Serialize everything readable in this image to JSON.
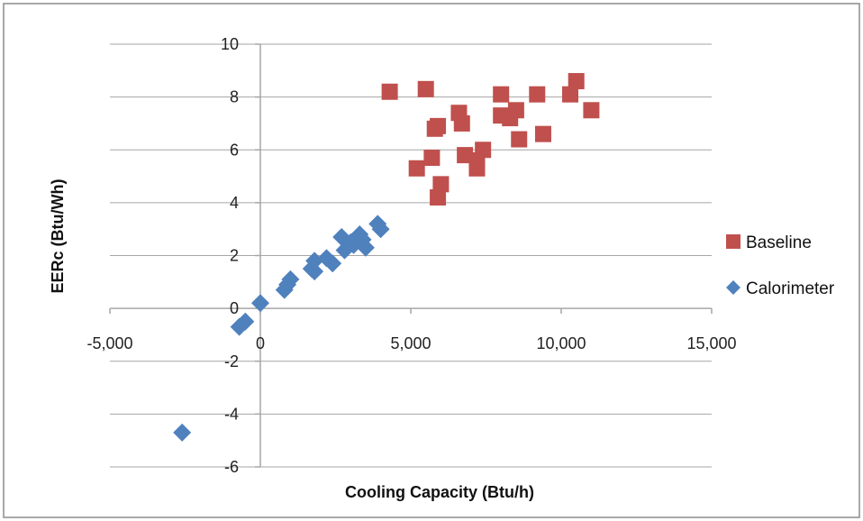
{
  "colors": {
    "baseline": "#c0504d",
    "calorimeter": "#4f81bd",
    "grid": "#a6a6a6",
    "axis": "#a6a6a6",
    "border": "#8c8c8c"
  },
  "chart_data": {
    "type": "scatter",
    "title": "",
    "xlabel": "Cooling Capacity (Btu/h)",
    "ylabel": "EERc (Btu/Wh)",
    "xlim": [
      -5000,
      15000
    ],
    "ylim": [
      -6,
      10
    ],
    "x_ticks": [
      -5000,
      0,
      5000,
      10000,
      15000
    ],
    "x_tick_labels": [
      "-5,000",
      "0",
      "5,000",
      "10,000",
      "15,000"
    ],
    "y_ticks": [
      -6,
      -4,
      -2,
      0,
      2,
      4,
      6,
      8,
      10
    ],
    "y_tick_labels": [
      "-6",
      "-4",
      "-2",
      "0",
      "2",
      "4",
      "6",
      "8",
      "10"
    ],
    "grid": "horizontal",
    "legend_position": "right",
    "series": [
      {
        "name": "Baseline",
        "marker": "square",
        "color_key": "baseline",
        "points": [
          {
            "x": 4300,
            "y": 8.2
          },
          {
            "x": 5500,
            "y": 8.3
          },
          {
            "x": 5200,
            "y": 5.3
          },
          {
            "x": 5700,
            "y": 5.7
          },
          {
            "x": 5800,
            "y": 6.8
          },
          {
            "x": 5900,
            "y": 6.9
          },
          {
            "x": 5900,
            "y": 4.2
          },
          {
            "x": 6000,
            "y": 4.7
          },
          {
            "x": 6600,
            "y": 7.4
          },
          {
            "x": 6700,
            "y": 7.0
          },
          {
            "x": 6800,
            "y": 5.8
          },
          {
            "x": 7200,
            "y": 5.3
          },
          {
            "x": 7200,
            "y": 5.6
          },
          {
            "x": 7400,
            "y": 6.0
          },
          {
            "x": 8000,
            "y": 8.1
          },
          {
            "x": 8000,
            "y": 7.3
          },
          {
            "x": 8300,
            "y": 7.2
          },
          {
            "x": 8500,
            "y": 7.5
          },
          {
            "x": 8600,
            "y": 6.4
          },
          {
            "x": 9200,
            "y": 8.1
          },
          {
            "x": 9400,
            "y": 6.6
          },
          {
            "x": 10300,
            "y": 8.1
          },
          {
            "x": 10500,
            "y": 8.6
          },
          {
            "x": 11000,
            "y": 7.5
          }
        ]
      },
      {
        "name": "Calorimeter",
        "marker": "diamond",
        "color_key": "calorimeter",
        "points": [
          {
            "x": -2600,
            "y": -4.7
          },
          {
            "x": -700,
            "y": -0.7
          },
          {
            "x": -500,
            "y": -0.5
          },
          {
            "x": 0,
            "y": 0.2
          },
          {
            "x": 800,
            "y": 0.7
          },
          {
            "x": 900,
            "y": 0.9
          },
          {
            "x": 1000,
            "y": 1.1
          },
          {
            "x": 1700,
            "y": 1.5
          },
          {
            "x": 1800,
            "y": 1.4
          },
          {
            "x": 1800,
            "y": 1.8
          },
          {
            "x": 2200,
            "y": 1.9
          },
          {
            "x": 2400,
            "y": 1.7
          },
          {
            "x": 2700,
            "y": 2.7
          },
          {
            "x": 2800,
            "y": 2.2
          },
          {
            "x": 3000,
            "y": 2.5
          },
          {
            "x": 3100,
            "y": 2.4
          },
          {
            "x": 3300,
            "y": 2.8
          },
          {
            "x": 3400,
            "y": 2.6
          },
          {
            "x": 3500,
            "y": 2.3
          },
          {
            "x": 3900,
            "y": 3.2
          },
          {
            "x": 4000,
            "y": 3.0
          }
        ]
      }
    ]
  }
}
